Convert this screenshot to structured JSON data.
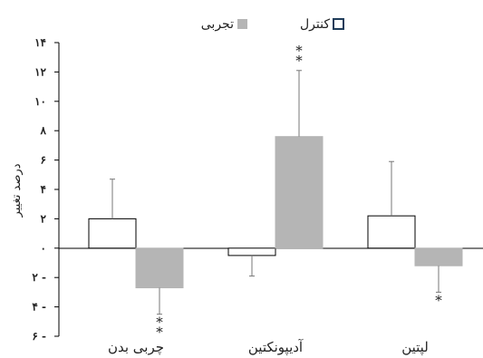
{
  "chart_data": {
    "type": "bar",
    "title": "",
    "xlabel": "",
    "ylabel": "درصد تغییر",
    "ylim": [
      -6,
      14
    ],
    "yticks": [
      -6,
      -4,
      -2,
      0,
      2,
      4,
      6,
      8,
      10,
      12,
      14
    ],
    "ytick_labels": [
      "۶ -",
      "۴ -",
      "۲ -",
      "۰",
      "۲",
      "۴",
      "۶",
      "۸",
      "۱۰",
      "۱۲",
      "۱۴"
    ],
    "categories": [
      "چربی بدن",
      "آدیپونکتین",
      "لپتین"
    ],
    "series": [
      {
        "name": "کنترل",
        "color": "#ffffff",
        "values": [
          2.0,
          -0.5,
          2.2
        ],
        "errors": [
          2.7,
          1.4,
          3.7
        ],
        "stars": [
          "",
          "",
          ""
        ]
      },
      {
        "name": "تجربی",
        "color": "#b5b5b5",
        "values": [
          -2.7,
          7.6,
          -1.2
        ],
        "errors": [
          1.8,
          4.5,
          1.8
        ],
        "stars": [
          "**",
          "**",
          "*"
        ]
      }
    ],
    "legend": "top-center",
    "grid": false
  }
}
